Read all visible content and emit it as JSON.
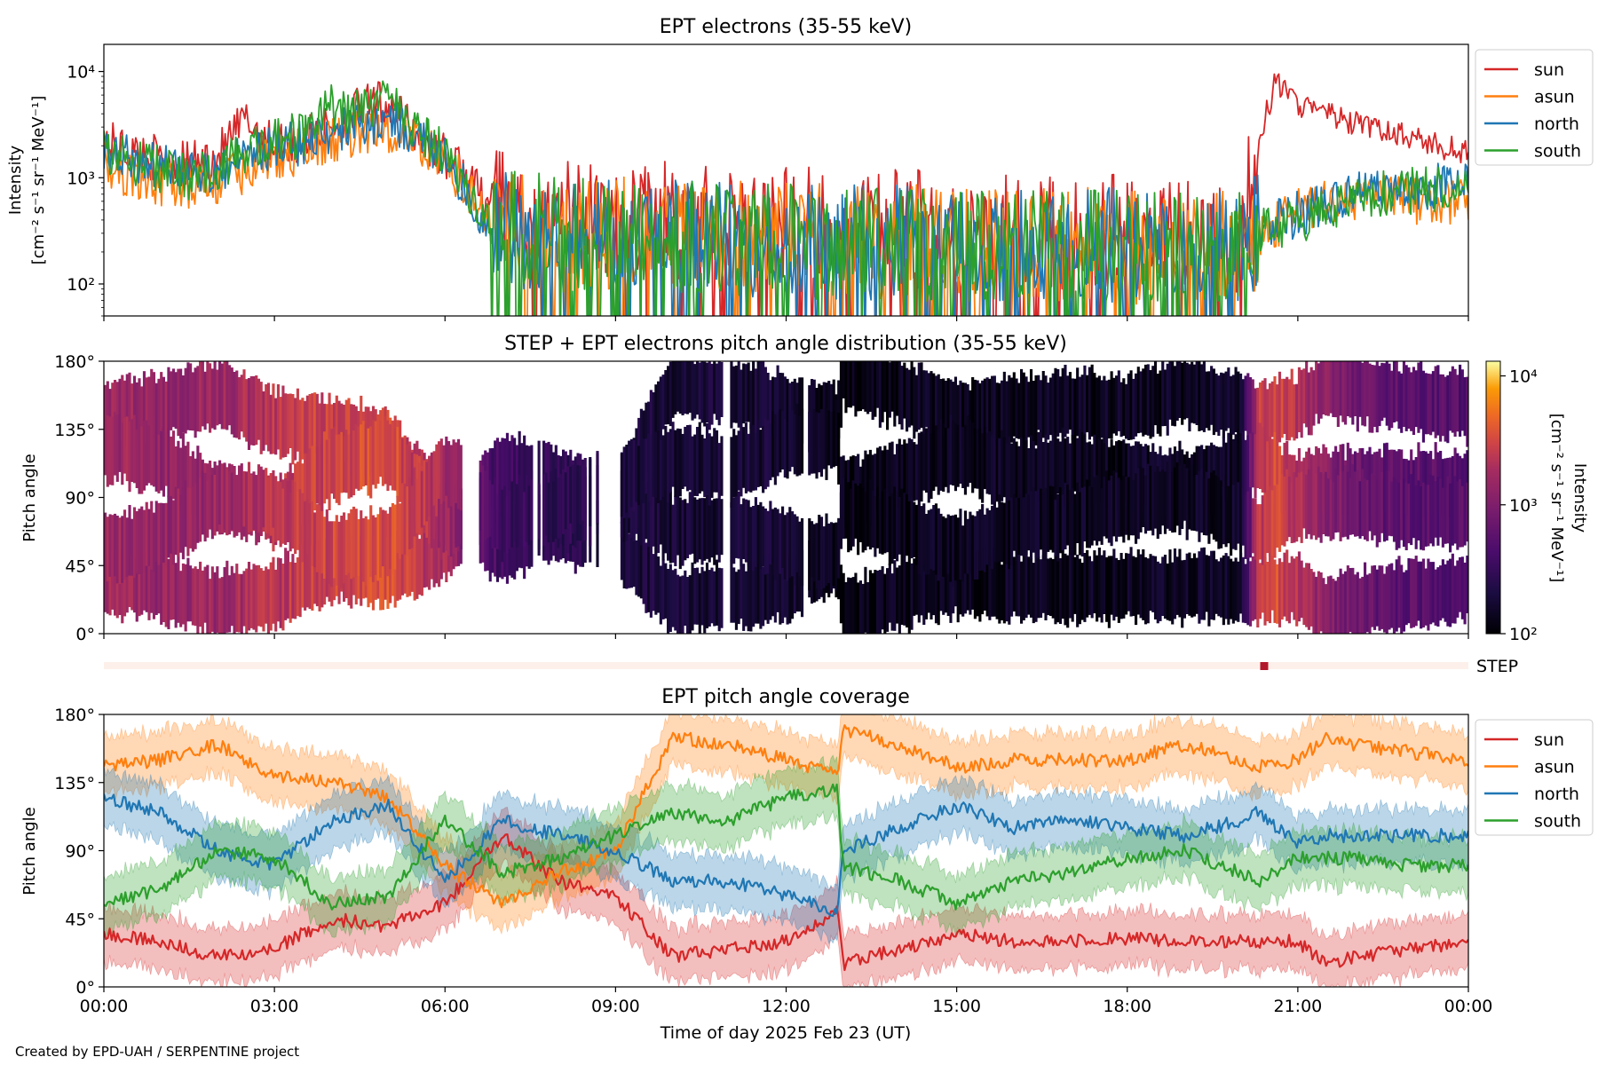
{
  "chart_data": [
    {
      "type": "line",
      "title": "EPT electrons (35-55 keV)",
      "ylabel_line1": "Intensity",
      "ylabel_line2": "[cm⁻² s⁻¹ sr⁻¹ MeV⁻¹]",
      "yscale": "log",
      "ylim": [
        50,
        18000
      ],
      "xlim": [
        0,
        24
      ],
      "y_ticks": [
        100,
        1000,
        10000
      ],
      "y_tick_labels": [
        "10²",
        "10³",
        "10⁴"
      ],
      "legend_position": "outside-right-top",
      "series": [
        {
          "name": "sun",
          "color": "#d62728",
          "x": [
            0,
            0.5,
            1,
            1.5,
            2,
            2.5,
            3,
            3.5,
            4,
            4.5,
            5,
            5.5,
            6,
            6.3,
            6.6,
            7,
            8,
            9,
            10,
            11,
            12,
            13,
            14,
            15,
            16,
            17,
            18,
            19,
            20,
            20.3,
            20.6,
            21,
            21.5,
            22,
            22.5,
            23,
            23.5,
            24
          ],
          "y": [
            2200,
            1700,
            1500,
            1300,
            1600,
            3500,
            2000,
            2200,
            3000,
            4500,
            5000,
            2500,
            1600,
            1200,
            700,
            500,
            450,
            420,
            400,
            380,
            360,
            350,
            340,
            330,
            320,
            320,
            310,
            300,
            290,
            2000,
            8000,
            5000,
            4000,
            3200,
            2800,
            2400,
            2000,
            1700
          ]
        },
        {
          "name": "asun",
          "color": "#ff7f0e",
          "x": [
            0,
            0.5,
            1,
            1.5,
            2,
            2.5,
            3,
            3.5,
            4,
            4.5,
            5,
            5.5,
            6,
            6.3,
            6.6,
            7,
            8,
            9,
            10,
            11,
            12,
            13,
            14,
            15,
            16,
            17,
            18,
            19,
            20,
            20.5,
            21,
            21.5,
            22,
            22.5,
            23,
            23.5,
            24
          ],
          "y": [
            1300,
            1000,
            900,
            800,
            900,
            1200,
            1500,
            1800,
            2300,
            2600,
            2700,
            2200,
            1500,
            900,
            500,
            320,
            300,
            290,
            280,
            270,
            260,
            250,
            250,
            240,
            240,
            230,
            230,
            230,
            230,
            320,
            500,
            600,
            650,
            650,
            600,
            600,
            600
          ]
        },
        {
          "name": "north",
          "color": "#1f77b4",
          "x": [
            0,
            0.5,
            1,
            1.5,
            2,
            2.5,
            3,
            3.5,
            4,
            4.5,
            5,
            5.5,
            6,
            6.3,
            6.6,
            7,
            8,
            9,
            10,
            11,
            12,
            13,
            14,
            15,
            16,
            17,
            18,
            19,
            20,
            20.5,
            21,
            21.5,
            22,
            22.5,
            23,
            23.5,
            24
          ],
          "y": [
            1800,
            1500,
            1300,
            1100,
            1200,
            1600,
            1900,
            2200,
            2800,
            3200,
            3400,
            2600,
            1600,
            900,
            500,
            330,
            300,
            280,
            270,
            260,
            250,
            250,
            240,
            240,
            230,
            230,
            230,
            220,
            230,
            380,
            450,
            600,
            700,
            750,
            800,
            850,
            850
          ]
        },
        {
          "name": "south",
          "color": "#2ca02c",
          "x": [
            0,
            0.5,
            1,
            1.5,
            2,
            2.5,
            3,
            3.5,
            4,
            4.5,
            5,
            5.5,
            6,
            6.3,
            6.6,
            7,
            8,
            9,
            10,
            11,
            12,
            13,
            14,
            15,
            16,
            17,
            18,
            19,
            20,
            20.5,
            21,
            21.5,
            22,
            22.5,
            23,
            23.5,
            24
          ],
          "y": [
            1700,
            1400,
            1200,
            1000,
            1200,
            1700,
            2200,
            2600,
            4500,
            4200,
            5500,
            2800,
            1800,
            1000,
            550,
            330,
            300,
            280,
            270,
            260,
            250,
            250,
            240,
            240,
            230,
            230,
            230,
            220,
            230,
            350,
            380,
            500,
            650,
            700,
            750,
            800,
            800
          ]
        }
      ]
    },
    {
      "type": "heatmap",
      "title": "STEP + EPT electrons pitch angle distribution (35-55 keV)",
      "ylabel": "Pitch angle",
      "ylim": [
        0,
        180
      ],
      "xlim": [
        0,
        24
      ],
      "y_tick_labels": [
        "0°",
        "45°",
        "90°",
        "135°",
        "180°"
      ],
      "colorbar": {
        "label_line1": "Intensity",
        "label_line2": "[cm⁻² s⁻¹ sr⁻¹ MeV⁻¹]",
        "scale": "log",
        "range": [
          100,
          13000
        ],
        "tick_labels": [
          "10²",
          "10³",
          "10⁴"
        ],
        "colormap": "inferno"
      },
      "intensity_profile": {
        "x": [
          0,
          1,
          2,
          3,
          4,
          5,
          6,
          6.5,
          7,
          8,
          9,
          10,
          11,
          12,
          13,
          14,
          15,
          16,
          17,
          18,
          19,
          20,
          20.3,
          20.6,
          21,
          22,
          23,
          24
        ],
        "y": [
          1600,
          1400,
          1500,
          2200,
          3000,
          3500,
          1800,
          700,
          350,
          280,
          200,
          180,
          180,
          170,
          120,
          130,
          140,
          140,
          140,
          140,
          140,
          150,
          2500,
          3500,
          2000,
          700,
          550,
          500
        ]
      },
      "step_strip": {
        "label": "STEP",
        "marker_x": 20.4
      }
    },
    {
      "type": "line",
      "title": "EPT pitch angle coverage",
      "ylabel": "Pitch angle",
      "xlabel": "Time of day 2025 Feb 23 (UT)",
      "ylim": [
        0,
        180
      ],
      "xlim": [
        0,
        24
      ],
      "y_tick_labels": [
        "0°",
        "45°",
        "90°",
        "135°",
        "180°"
      ],
      "x_tick_labels": [
        "00:00",
        "03:00",
        "06:00",
        "09:00",
        "12:00",
        "15:00",
        "18:00",
        "21:00",
        "00:00"
      ],
      "band_halfwidth": 18,
      "legend_position": "outside-right-top",
      "series": [
        {
          "name": "sun",
          "color": "#d62728",
          "x": [
            0,
            1,
            2,
            3,
            4,
            5,
            6,
            7,
            8,
            9,
            10,
            11,
            12,
            12.9,
            13,
            14,
            15,
            16,
            17,
            18,
            19,
            20,
            20.3,
            21,
            21.5,
            22,
            23,
            24
          ],
          "y": [
            35,
            30,
            20,
            25,
            45,
            40,
            55,
            100,
            70,
            60,
            20,
            25,
            30,
            50,
            15,
            25,
            35,
            30,
            30,
            32,
            30,
            30,
            30,
            30,
            15,
            20,
            25,
            30
          ]
        },
        {
          "name": "asun",
          "color": "#ff7f0e",
          "x": [
            0,
            1,
            2,
            3,
            4,
            5,
            6,
            7,
            8,
            9,
            10,
            11,
            12,
            12.9,
            13,
            14,
            15,
            16,
            17,
            18,
            19,
            20,
            20.3,
            21,
            21.5,
            22,
            23,
            24
          ],
          "y": [
            145,
            150,
            160,
            140,
            135,
            125,
            80,
            55,
            75,
            90,
            165,
            160,
            150,
            140,
            170,
            160,
            145,
            150,
            150,
            150,
            160,
            150,
            145,
            150,
            165,
            160,
            155,
            150
          ]
        },
        {
          "name": "north",
          "color": "#1f77b4",
          "x": [
            0,
            1,
            2,
            3,
            4,
            5,
            6,
            7,
            8,
            9,
            10,
            11,
            12,
            12.9,
            13,
            14,
            15,
            16,
            17,
            18,
            19,
            20,
            20.3,
            21,
            21.5,
            22,
            23,
            24
          ],
          "y": [
            125,
            115,
            90,
            80,
            110,
            120,
            70,
            110,
            100,
            90,
            70,
            70,
            60,
            50,
            90,
            105,
            120,
            105,
            110,
            105,
            100,
            110,
            115,
            95,
            100,
            100,
            100,
            100
          ]
        },
        {
          "name": "south",
          "color": "#2ca02c",
          "x": [
            0,
            1,
            2,
            3,
            4,
            5,
            6,
            7,
            8,
            9,
            10,
            11,
            12,
            12.9,
            13,
            14,
            15,
            16,
            17,
            18,
            19,
            20,
            20.3,
            21,
            21.5,
            22,
            23,
            24
          ],
          "y": [
            55,
            65,
            90,
            85,
            55,
            60,
            110,
            75,
            85,
            100,
            115,
            110,
            125,
            130,
            80,
            70,
            55,
            70,
            75,
            85,
            90,
            75,
            70,
            85,
            85,
            85,
            80,
            80
          ]
        }
      ]
    }
  ],
  "credit": "Created by EPD-UAH / SERPENTINE project"
}
